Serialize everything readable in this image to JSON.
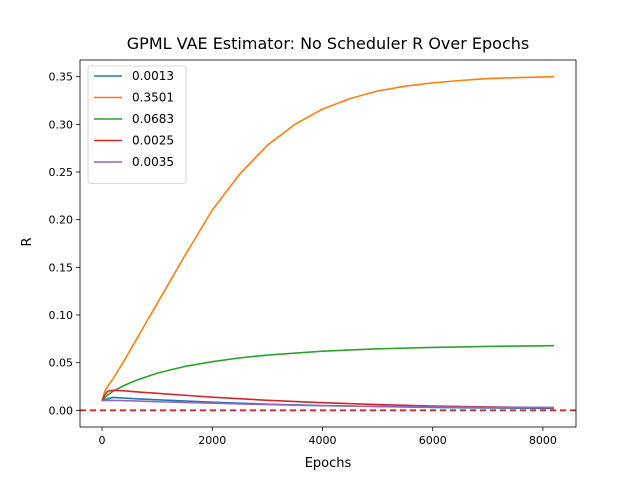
{
  "chart_data": {
    "type": "line",
    "title": "GPML VAE Estimator: No Scheduler R Over Epochs",
    "xlabel": "Epochs",
    "ylabel": "R",
    "xlim": [
      -400,
      8600
    ],
    "ylim": [
      -0.0175,
      0.3675
    ],
    "xticks": [
      0,
      2000,
      4000,
      6000,
      8000
    ],
    "xtick_labels": [
      "0",
      "2000",
      "4000",
      "6000",
      "8000"
    ],
    "yticks": [
      0.0,
      0.05,
      0.1,
      0.15,
      0.2,
      0.25,
      0.3,
      0.35
    ],
    "ytick_labels": [
      "0.00",
      "0.05",
      "0.10",
      "0.15",
      "0.20",
      "0.25",
      "0.30",
      "0.35"
    ],
    "grid": false,
    "legend_position": "upper-left",
    "reference_line": {
      "y": 0.0,
      "color": "#d62728",
      "style": "dashed"
    },
    "series": [
      {
        "name": "0.0013",
        "color": "#1f77b4",
        "x": [
          0,
          50,
          100,
          200,
          500,
          1000,
          2000,
          3000,
          4000,
          5000,
          6000,
          7000,
          8200
        ],
        "y": [
          0.01,
          0.011,
          0.012,
          0.0135,
          0.0125,
          0.011,
          0.0085,
          0.0065,
          0.005,
          0.004,
          0.003,
          0.0025,
          0.002
        ]
      },
      {
        "name": "0.3501",
        "color": "#ff7f0e",
        "x": [
          0,
          50,
          100,
          200,
          400,
          600,
          800,
          1000,
          1500,
          2000,
          2500,
          3000,
          3500,
          4000,
          4500,
          5000,
          5500,
          6000,
          6500,
          7000,
          7500,
          8200
        ],
        "y": [
          0.01,
          0.02,
          0.025,
          0.033,
          0.052,
          0.072,
          0.092,
          0.112,
          0.162,
          0.21,
          0.248,
          0.278,
          0.3,
          0.316,
          0.327,
          0.335,
          0.34,
          0.3435,
          0.346,
          0.348,
          0.349,
          0.35
        ]
      },
      {
        "name": "0.0683",
        "color": "#2ca02c",
        "x": [
          0,
          100,
          200,
          400,
          600,
          1000,
          1500,
          2000,
          2500,
          3000,
          4000,
          5000,
          6000,
          7000,
          8200
        ],
        "y": [
          0.01,
          0.016,
          0.02,
          0.026,
          0.031,
          0.039,
          0.046,
          0.051,
          0.055,
          0.058,
          0.062,
          0.0645,
          0.066,
          0.067,
          0.0678
        ]
      },
      {
        "name": "0.0025",
        "color": "#d62728",
        "x": [
          0,
          50,
          100,
          200,
          400,
          700,
          1000,
          1500,
          2000,
          3000,
          4000,
          5000,
          6000,
          7000,
          8200
        ],
        "y": [
          0.01,
          0.016,
          0.02,
          0.021,
          0.0205,
          0.019,
          0.0178,
          0.0158,
          0.0138,
          0.0105,
          0.008,
          0.006,
          0.0045,
          0.0035,
          0.0028
        ]
      },
      {
        "name": "0.0035",
        "color": "#9467bd",
        "x": [
          0,
          100,
          300,
          600,
          1000,
          2000,
          3000,
          4000,
          5000,
          6000,
          7000,
          8200
        ],
        "y": [
          0.01,
          0.0105,
          0.0103,
          0.0098,
          0.009,
          0.0075,
          0.006,
          0.0048,
          0.004,
          0.0035,
          0.003,
          0.003
        ]
      }
    ]
  }
}
